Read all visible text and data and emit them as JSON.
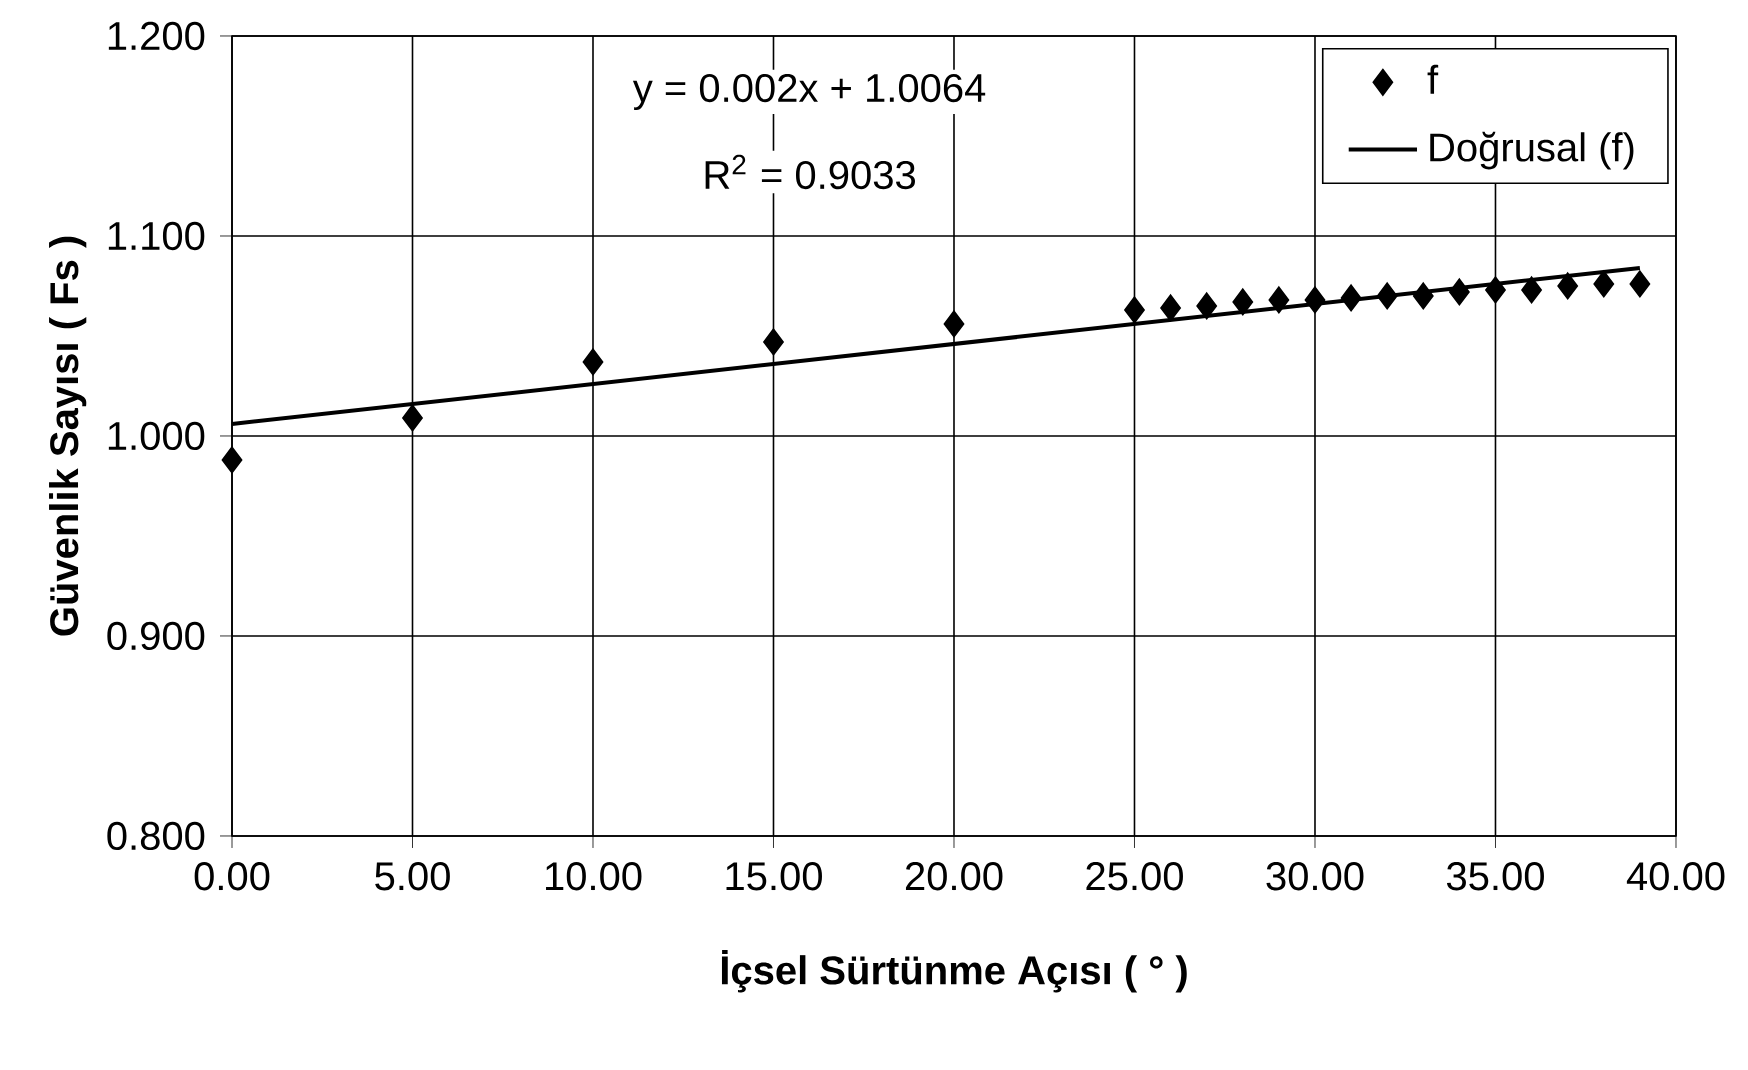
{
  "chart_data": {
    "type": "scatter",
    "xlabel": "İçsel Sürtünme Açısı ( ° )",
    "ylabel": "Güvenlik Sayısı ( Fs )",
    "annotations": [
      "y = 0.002x + 1.0064",
      "R$^{2}$ = 0.9033"
    ],
    "series": [
      {
        "name": "f",
        "color": "#000000",
        "marker": "diamond",
        "x": [
          0,
          5,
          10,
          15,
          20,
          25,
          26,
          27,
          28,
          29,
          30,
          31,
          32,
          33,
          34,
          35,
          36,
          37,
          38,
          39
        ],
        "values": [
          0.988,
          1.009,
          1.037,
          1.047,
          1.056,
          1.063,
          1.064,
          1.065,
          1.067,
          1.068,
          1.068,
          1.069,
          1.07,
          1.07,
          1.072,
          1.073,
          1.073,
          1.075,
          1.076,
          1.076
        ]
      },
      {
        "name": "Doğrusal (f)",
        "type": "line",
        "color": "#000000",
        "line_style": "solid",
        "x": [
          0,
          39
        ],
        "values": [
          1.006,
          1.084
        ]
      }
    ],
    "xlim": [
      0,
      40
    ],
    "ylim": [
      0.8,
      1.2
    ],
    "xticks": [
      {
        "value": 0,
        "label": "0.00"
      },
      {
        "value": 5,
        "label": "5.00"
      },
      {
        "value": 10,
        "label": "10.00"
      },
      {
        "value": 15,
        "label": "15.00"
      },
      {
        "value": 20,
        "label": "20.00"
      },
      {
        "value": 25,
        "label": "25.00"
      },
      {
        "value": 30,
        "label": "30.00"
      },
      {
        "value": 35,
        "label": "35.00"
      },
      {
        "value": 40,
        "label": "40.00"
      }
    ],
    "yticks": [
      {
        "value": 0.8,
        "label": "0.800"
      },
      {
        "value": 0.9,
        "label": "0.900"
      },
      {
        "value": 1.0,
        "label": "1.000"
      },
      {
        "value": 1.1,
        "label": "1.100"
      },
      {
        "value": 1.2,
        "label": "1.200"
      }
    ],
    "grid": true,
    "legend": "top right"
  }
}
